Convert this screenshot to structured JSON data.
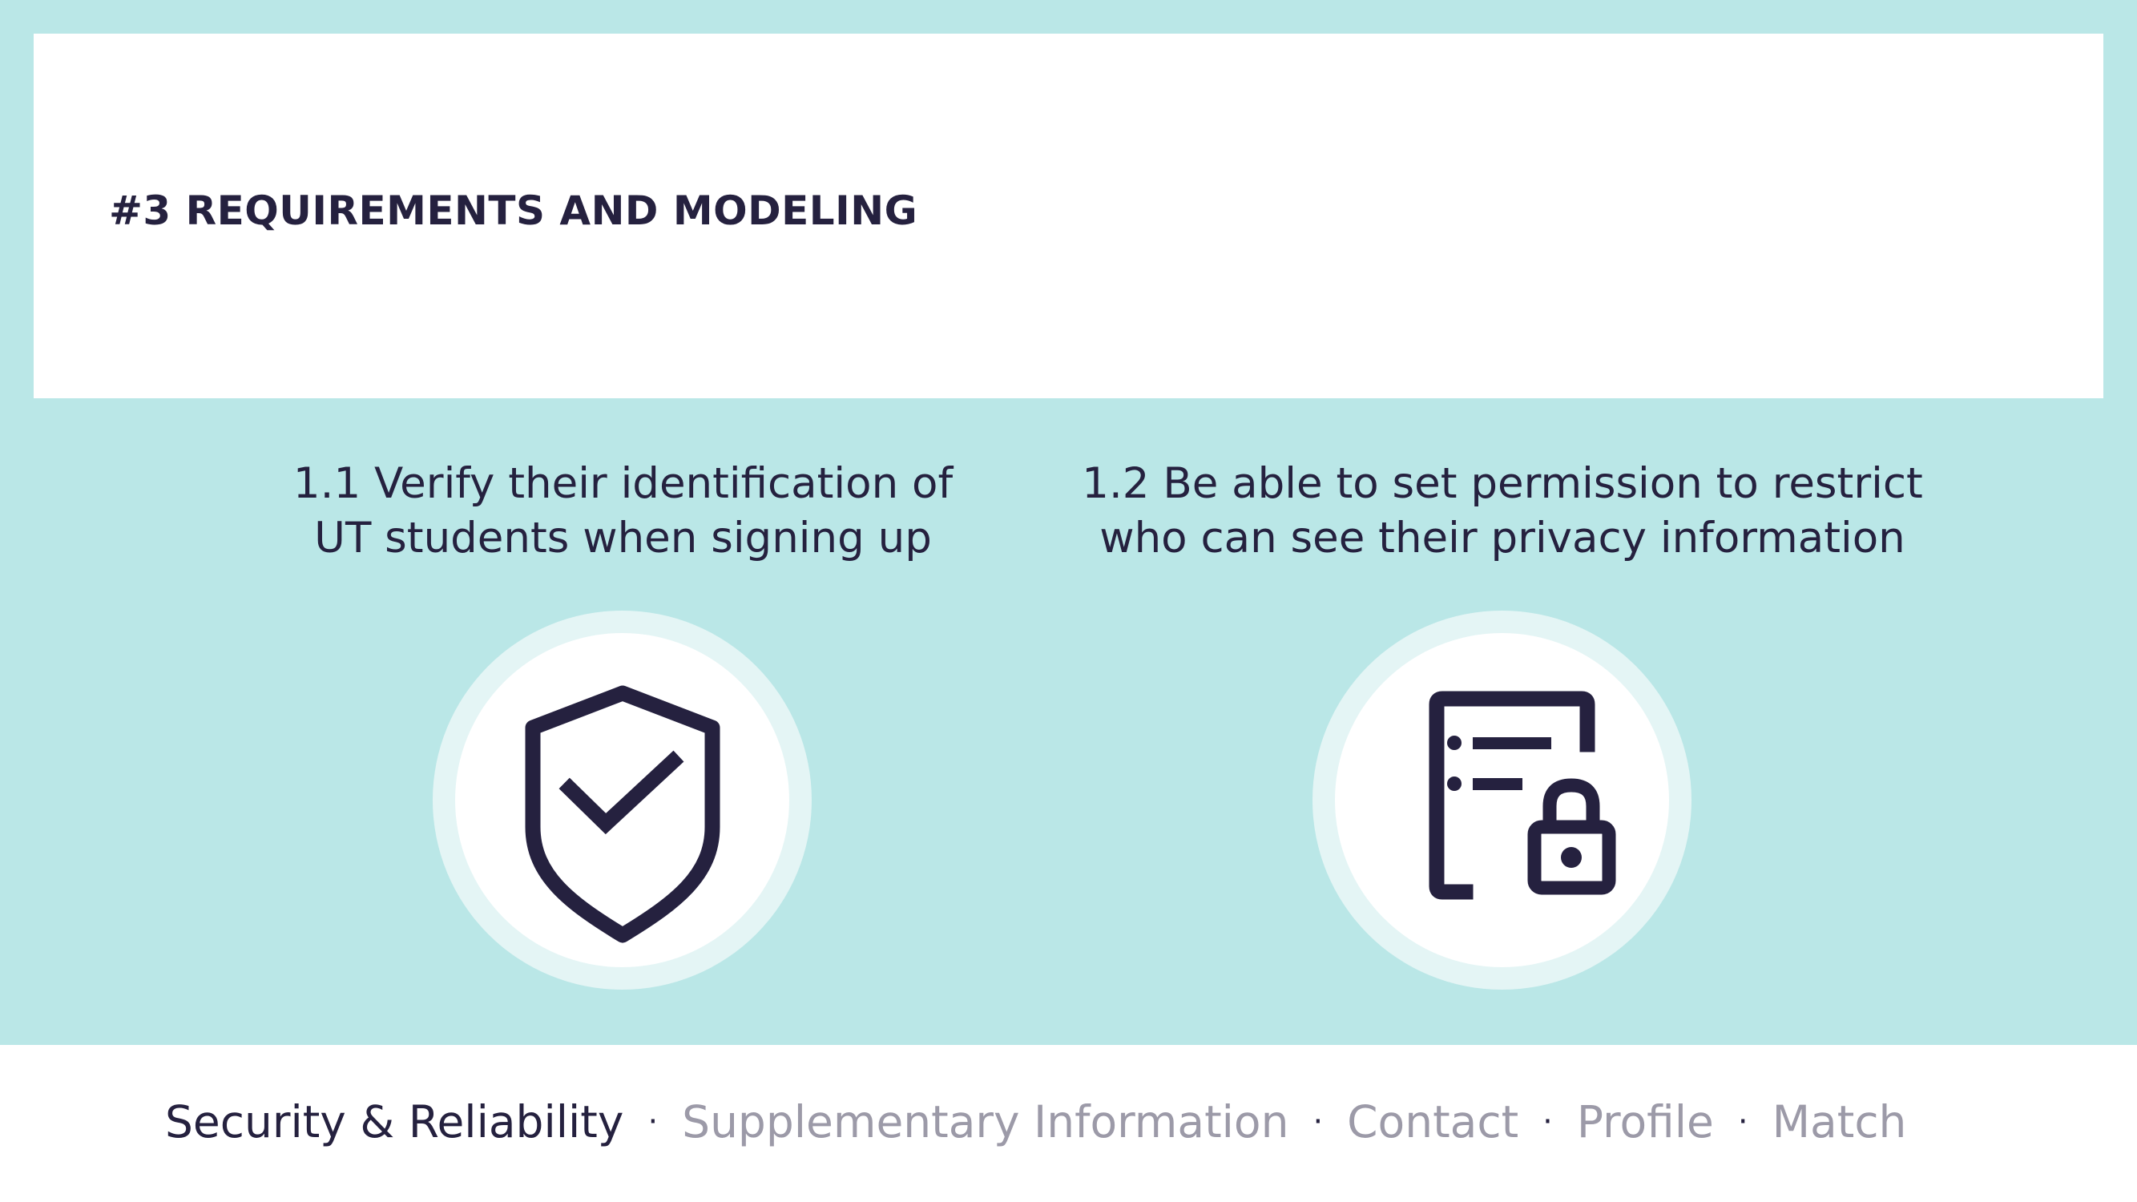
{
  "header": {
    "title": "#3 REQUIREMENTS AND MODELING"
  },
  "requirements": [
    {
      "line1": "1.1 Verify their identification of",
      "line2": "UT students when signing up",
      "icon": "shield-check-icon"
    },
    {
      "line1": "1.2 Be able to set permission to restrict",
      "line2": "who can see their privacy information",
      "icon": "document-lock-icon"
    }
  ],
  "footer": {
    "separator": "·",
    "items": [
      {
        "label": "Security & Reliability",
        "active": true
      },
      {
        "label": "Supplementary Information",
        "active": false
      },
      {
        "label": "Contact",
        "active": false
      },
      {
        "label": "Profile",
        "active": false
      },
      {
        "label": "Match",
        "active": false
      }
    ]
  },
  "colors": {
    "background": "#bae7e7",
    "card": "#ffffff",
    "text": "#25213f",
    "muted": "#9c9aa8",
    "ring": "#e4f5f5"
  }
}
